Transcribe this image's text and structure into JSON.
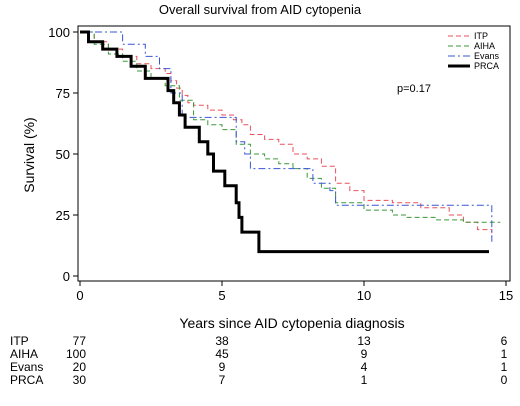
{
  "chart_data": {
    "type": "line",
    "title": "Overall survival from AID cytopenia",
    "xlabel": "Years since AID cytopenia diagnosis",
    "ylabel": "Survival (%)",
    "xlim": [
      0,
      15
    ],
    "ylim": [
      0,
      100
    ],
    "xticks": [
      0,
      5,
      10,
      15
    ],
    "yticks": [
      0,
      25,
      50,
      75,
      100
    ],
    "grid": false,
    "legend_position": "top-right",
    "annotation": "p=0.17",
    "series": [
      {
        "name": "ITP",
        "color": "#e8505b",
        "dash": "dashed",
        "width": 1,
        "x": [
          0,
          0.5,
          1.0,
          1.5,
          2.0,
          2.5,
          3.0,
          3.2,
          3.4,
          3.6,
          3.8,
          4.0,
          4.5,
          5.0,
          5.4,
          5.7,
          6.0,
          6.5,
          7.0,
          7.5,
          8.0,
          8.5,
          9.0,
          9.5,
          10.0,
          11.0,
          12.0,
          13.0,
          13.5,
          14.0,
          14.5
        ],
        "y": [
          100,
          96,
          93,
          90,
          87,
          85,
          83,
          80,
          77,
          74,
          71,
          70,
          68,
          66,
          64,
          62,
          58,
          56,
          54,
          50,
          48,
          45,
          38,
          35,
          31,
          30,
          28,
          25,
          22,
          19,
          16
        ]
      },
      {
        "name": "AIHA",
        "color": "#3a9a3a",
        "dash": "dashed",
        "width": 1,
        "x": [
          0,
          0.5,
          1.0,
          1.5,
          2.0,
          2.5,
          3.0,
          3.5,
          4.0,
          4.5,
          5.0,
          5.5,
          6.0,
          6.5,
          7.0,
          7.5,
          8.0,
          8.5,
          9.0,
          10.0,
          11.0,
          11.5,
          12.5,
          13.5,
          14.5,
          14.8
        ],
        "y": [
          100,
          95,
          91,
          88,
          84,
          81,
          78,
          72,
          64,
          62,
          60,
          54,
          50,
          48,
          46,
          44,
          40,
          36,
          30,
          27,
          25,
          24,
          23,
          22,
          22,
          22
        ]
      },
      {
        "name": "Evans",
        "color": "#3a55d6",
        "dash": "dashdot",
        "width": 1,
        "x": [
          0,
          1.5,
          2.3,
          2.8,
          3.2,
          3.6,
          5.2,
          5.5,
          5.8,
          6.0,
          8.0,
          8.2,
          8.8,
          9.0,
          14.3,
          14.5
        ],
        "y": [
          100,
          95,
          90,
          85,
          75,
          65,
          65,
          55,
          50,
          44,
          44,
          38,
          35,
          29,
          29,
          14
        ]
      },
      {
        "name": "PRCA",
        "color": "#000000",
        "dash": "solid",
        "width": 3,
        "x": [
          0,
          0.3,
          0.8,
          1.3,
          1.8,
          2.3,
          3.1,
          3.3,
          3.5,
          3.7,
          4.2,
          4.5,
          4.7,
          5.1,
          5.5,
          5.6,
          5.7,
          6.3,
          14.4
        ],
        "y": [
          100,
          96,
          93,
          90,
          86,
          81,
          76,
          71,
          66,
          61,
          55,
          50,
          43,
          37,
          30,
          24,
          18,
          10,
          10
        ]
      }
    ],
    "risk_table": {
      "columns_x": [
        0,
        5,
        10,
        15
      ],
      "rows": [
        {
          "label": "ITP",
          "values": [
            "77",
            "38",
            "13",
            "6"
          ]
        },
        {
          "label": "AIHA",
          "values": [
            "100",
            "45",
            "9",
            "1"
          ]
        },
        {
          "label": "Evans",
          "values": [
            "20",
            "9",
            "4",
            "1"
          ]
        },
        {
          "label": "PRCA",
          "values": [
            "30",
            "7",
            "1",
            "0"
          ]
        }
      ]
    }
  }
}
